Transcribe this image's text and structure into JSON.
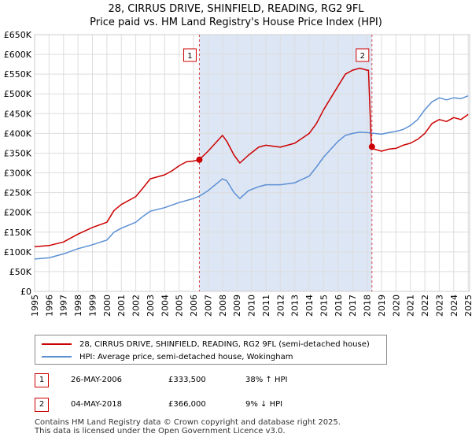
{
  "title_line1": "28, CIRRUS DRIVE, SHINFIELD, READING, RG2 9FL",
  "title_line2": "Price paid vs. HM Land Registry's House Price Index (HPI)",
  "colors": {
    "property": "#cc0000",
    "hpi": "#5b8fd4",
    "shade": "#dde6f5",
    "grid": "#dddddd"
  },
  "legend": {
    "property_label": "28, CIRRUS DRIVE, SHINFIELD, READING, RG2 9FL (semi-detached house)",
    "hpi_label": "HPI: Average price, semi-detached house, Wokingham"
  },
  "transactions": [
    {
      "num": "1",
      "date": "26-MAY-2006",
      "price": "£333,500",
      "hpi_delta": "38% ↑ HPI"
    },
    {
      "num": "2",
      "date": "04-MAY-2018",
      "price": "£366,000",
      "hpi_delta": "9% ↓ HPI"
    }
  ],
  "footer_line1": "Contains HM Land Registry data © Crown copyright and database right 2025.",
  "footer_line2": "This data is licensed under the Open Government Licence v3.0.",
  "chart_data": {
    "type": "line",
    "title": "28, CIRRUS DRIVE, SHINFIELD, READING, RG2 9FL — Price paid vs. HM Land Registry's House Price Index (HPI)",
    "xlabel": "",
    "ylabel": "",
    "xlim": [
      1995,
      2025.1
    ],
    "ylim": [
      0,
      650000
    ],
    "y_ticks": [
      0,
      50000,
      100000,
      150000,
      200000,
      250000,
      300000,
      350000,
      400000,
      450000,
      500000,
      550000,
      600000,
      650000
    ],
    "y_tick_labels": [
      "£0",
      "£50K",
      "£100K",
      "£150K",
      "£200K",
      "£250K",
      "£300K",
      "£350K",
      "£400K",
      "£450K",
      "£500K",
      "£550K",
      "£600K",
      "£650K"
    ],
    "x_ticks": [
      1995,
      1996,
      1997,
      1998,
      1999,
      2000,
      2001,
      2002,
      2003,
      2004,
      2005,
      2006,
      2007,
      2008,
      2009,
      2010,
      2011,
      2012,
      2013,
      2014,
      2015,
      2016,
      2017,
      2018,
      2019,
      2020,
      2021,
      2022,
      2023,
      2024,
      2025
    ],
    "x_tick_labels": [
      "1995",
      "1996",
      "1997",
      "1998",
      "1999",
      "2000",
      "2001",
      "2002",
      "2003",
      "2004",
      "2005",
      "2006",
      "2007",
      "2008",
      "2009",
      "2010",
      "2011",
      "2012",
      "2013",
      "2014",
      "2015",
      "2016",
      "2017",
      "2018",
      "2019",
      "2020",
      "2021",
      "2022",
      "2023",
      "2024",
      "2025"
    ],
    "shaded_period": [
      2006.4,
      2018.34
    ],
    "markers": [
      {
        "label": "1",
        "x": 2006.4,
        "y": 333500
      },
      {
        "label": "2",
        "x": 2018.34,
        "y": 366000
      }
    ],
    "series": [
      {
        "name": "28, CIRRUS DRIVE, SHINFIELD, READING, RG2 9FL (semi-detached house)",
        "color": "#cc0000",
        "points": [
          [
            1995,
            113000
          ],
          [
            1996,
            116000
          ],
          [
            1997,
            125000
          ],
          [
            1998,
            145000
          ],
          [
            1999,
            162000
          ],
          [
            2000,
            175000
          ],
          [
            2000.5,
            205000
          ],
          [
            2001,
            220000
          ],
          [
            2002,
            240000
          ],
          [
            2002.5,
            262000
          ],
          [
            2003,
            285000
          ],
          [
            2004,
            295000
          ],
          [
            2004.5,
            305000
          ],
          [
            2005,
            318000
          ],
          [
            2005.5,
            328000
          ],
          [
            2006,
            330000
          ],
          [
            2006.4,
            333500
          ],
          [
            2007,
            355000
          ],
          [
            2007.5,
            375000
          ],
          [
            2008,
            395000
          ],
          [
            2008.3,
            380000
          ],
          [
            2008.8,
            345000
          ],
          [
            2009.2,
            325000
          ],
          [
            2009.8,
            345000
          ],
          [
            2010.5,
            365000
          ],
          [
            2011,
            370000
          ],
          [
            2012,
            365000
          ],
          [
            2013,
            375000
          ],
          [
            2014,
            400000
          ],
          [
            2014.5,
            425000
          ],
          [
            2015,
            460000
          ],
          [
            2015.5,
            490000
          ],
          [
            2016,
            520000
          ],
          [
            2016.5,
            550000
          ],
          [
            2017,
            560000
          ],
          [
            2017.5,
            565000
          ],
          [
            2018,
            560000
          ],
          [
            2018.1,
            560000
          ],
          [
            2018.3,
            366000
          ],
          [
            2018.5,
            360000
          ],
          [
            2019,
            355000
          ],
          [
            2019.5,
            360000
          ],
          [
            2020,
            362000
          ],
          [
            2020.5,
            370000
          ],
          [
            2021,
            375000
          ],
          [
            2021.5,
            385000
          ],
          [
            2022,
            400000
          ],
          [
            2022.5,
            425000
          ],
          [
            2023,
            435000
          ],
          [
            2023.5,
            430000
          ],
          [
            2024,
            440000
          ],
          [
            2024.5,
            435000
          ],
          [
            2025,
            448000
          ]
        ]
      },
      {
        "name": "HPI: Average price, semi-detached house, Wokingham",
        "color": "#5b8fd4",
        "points": [
          [
            1995,
            82000
          ],
          [
            1996,
            85000
          ],
          [
            1997,
            95000
          ],
          [
            1998,
            108000
          ],
          [
            1999,
            118000
          ],
          [
            2000,
            130000
          ],
          [
            2000.5,
            150000
          ],
          [
            2001,
            160000
          ],
          [
            2002,
            175000
          ],
          [
            2002.5,
            190000
          ],
          [
            2003,
            203000
          ],
          [
            2004,
            212000
          ],
          [
            2005,
            225000
          ],
          [
            2006,
            235000
          ],
          [
            2006.4,
            241000
          ],
          [
            2007,
            255000
          ],
          [
            2007.5,
            270000
          ],
          [
            2008,
            285000
          ],
          [
            2008.3,
            280000
          ],
          [
            2008.8,
            250000
          ],
          [
            2009.2,
            235000
          ],
          [
            2009.8,
            255000
          ],
          [
            2010.5,
            265000
          ],
          [
            2011,
            270000
          ],
          [
            2012,
            270000
          ],
          [
            2013,
            275000
          ],
          [
            2014,
            292000
          ],
          [
            2014.5,
            315000
          ],
          [
            2015,
            340000
          ],
          [
            2015.5,
            360000
          ],
          [
            2016,
            380000
          ],
          [
            2016.5,
            395000
          ],
          [
            2017,
            400000
          ],
          [
            2017.5,
            403000
          ],
          [
            2018,
            402000
          ],
          [
            2018.5,
            400000
          ],
          [
            2019,
            398000
          ],
          [
            2019.5,
            402000
          ],
          [
            2020,
            405000
          ],
          [
            2020.5,
            410000
          ],
          [
            2021,
            420000
          ],
          [
            2021.5,
            435000
          ],
          [
            2022,
            460000
          ],
          [
            2022.5,
            480000
          ],
          [
            2023,
            490000
          ],
          [
            2023.5,
            485000
          ],
          [
            2024,
            490000
          ],
          [
            2024.5,
            488000
          ],
          [
            2025,
            495000
          ]
        ]
      }
    ]
  }
}
